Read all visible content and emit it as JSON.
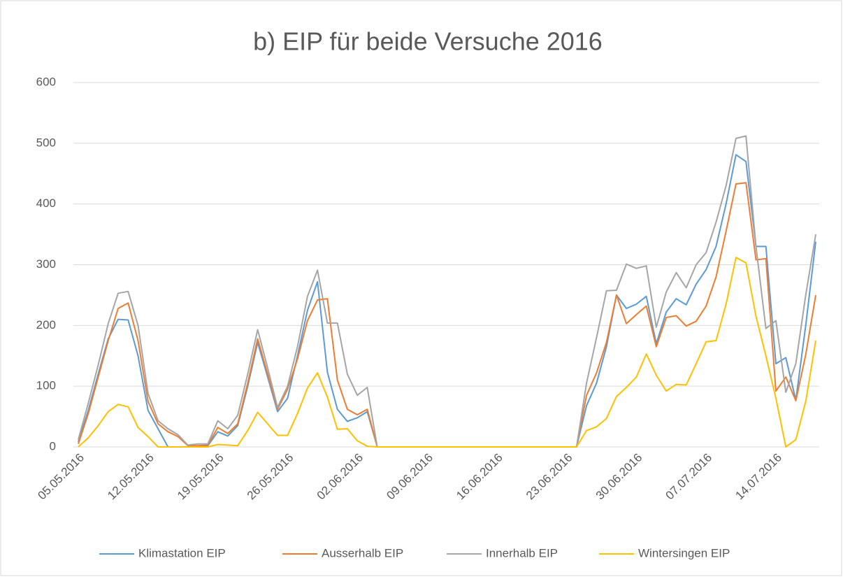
{
  "chart_data": {
    "type": "line",
    "title": "b) EIP für beide Versuche 2016",
    "categories": [
      "05.05.2016",
      null,
      null,
      null,
      null,
      null,
      null,
      "12.05.2016",
      null,
      null,
      null,
      null,
      null,
      null,
      "19.05.2016",
      null,
      null,
      null,
      null,
      null,
      null,
      "26.05.2016",
      null,
      null,
      null,
      null,
      null,
      null,
      "02.06.2016",
      null,
      null,
      null,
      null,
      null,
      null,
      "09.06.2016",
      null,
      null,
      null,
      null,
      null,
      null,
      "16.06.2016",
      null,
      null,
      null,
      null,
      null,
      null,
      "23.06.2016",
      null,
      null,
      null,
      null,
      null,
      null,
      "30.06.2016",
      null,
      null,
      null,
      null,
      null,
      null,
      "07.07.2016",
      null,
      null,
      null,
      null,
      null,
      null,
      "14.07.2016",
      null,
      null,
      null,
      null
    ],
    "series": [
      {
        "name": "Klimastation EIP",
        "color": "#5b9bd5",
        "values": [
          8,
          60,
          120,
          178,
          210,
          209,
          150,
          60,
          30,
          0,
          0,
          0,
          0,
          2,
          25,
          18,
          35,
          100,
          172,
          115,
          58,
          80,
          150,
          225,
          272,
          123,
          62,
          42,
          48,
          58,
          0,
          0,
          0,
          0,
          0,
          0,
          0,
          0,
          0,
          0,
          0,
          0,
          0,
          0,
          0,
          0,
          0,
          0,
          0,
          0,
          0,
          68,
          105,
          165,
          250,
          228,
          235,
          248,
          170,
          222,
          244,
          234,
          268,
          292,
          330,
          400,
          481,
          470,
          330,
          330,
          137,
          147,
          77,
          200,
          338
        ]
      },
      {
        "name": "Ausserhalb EIP",
        "color": "#ed7d31",
        "values": [
          5,
          55,
          115,
          175,
          228,
          237,
          175,
          75,
          38,
          25,
          17,
          2,
          2,
          3,
          32,
          22,
          38,
          105,
          178,
          120,
          62,
          95,
          145,
          208,
          242,
          244,
          110,
          62,
          53,
          62,
          0,
          0,
          0,
          0,
          0,
          0,
          0,
          0,
          0,
          0,
          0,
          0,
          0,
          0,
          0,
          0,
          0,
          0,
          0,
          0,
          0,
          85,
          122,
          172,
          250,
          203,
          218,
          232,
          165,
          213,
          216,
          199,
          207,
          232,
          280,
          355,
          433,
          435,
          308,
          310,
          92,
          115,
          76,
          152,
          250
        ]
      },
      {
        "name": "Innerhalb EIP",
        "color": "#a5a5a5",
        "values": [
          12,
          72,
          135,
          203,
          253,
          256,
          200,
          88,
          43,
          30,
          20,
          3,
          5,
          5,
          43,
          30,
          52,
          120,
          193,
          130,
          65,
          100,
          165,
          248,
          291,
          204,
          204,
          120,
          85,
          98,
          0,
          0,
          0,
          0,
          0,
          0,
          0,
          0,
          0,
          0,
          0,
          0,
          0,
          0,
          0,
          0,
          0,
          0,
          0,
          0,
          0,
          105,
          180,
          257,
          258,
          301,
          294,
          298,
          197,
          255,
          287,
          262,
          300,
          320,
          370,
          430,
          508,
          512,
          330,
          195,
          208,
          90,
          137,
          250,
          350
        ]
      },
      {
        "name": "Wintersingen EIP",
        "color": "#ffc000",
        "values": [
          0,
          15,
          35,
          58,
          70,
          66,
          32,
          17,
          0,
          0,
          0,
          0,
          0,
          0,
          4,
          3,
          2,
          27,
          57,
          38,
          19,
          19,
          55,
          97,
          122,
          82,
          29,
          30,
          10,
          1,
          0,
          0,
          0,
          0,
          0,
          0,
          0,
          0,
          0,
          0,
          0,
          0,
          0,
          0,
          0,
          0,
          0,
          0,
          0,
          0,
          0,
          27,
          33,
          47,
          83,
          98,
          115,
          153,
          118,
          92,
          103,
          102,
          137,
          173,
          175,
          235,
          312,
          303,
          215,
          150,
          80,
          0,
          12,
          75,
          175
        ]
      }
    ],
    "ylim": [
      0,
      600
    ],
    "yticks": [
      0,
      100,
      200,
      300,
      400,
      500,
      600
    ],
    "grid": true,
    "legend": "bottom"
  }
}
